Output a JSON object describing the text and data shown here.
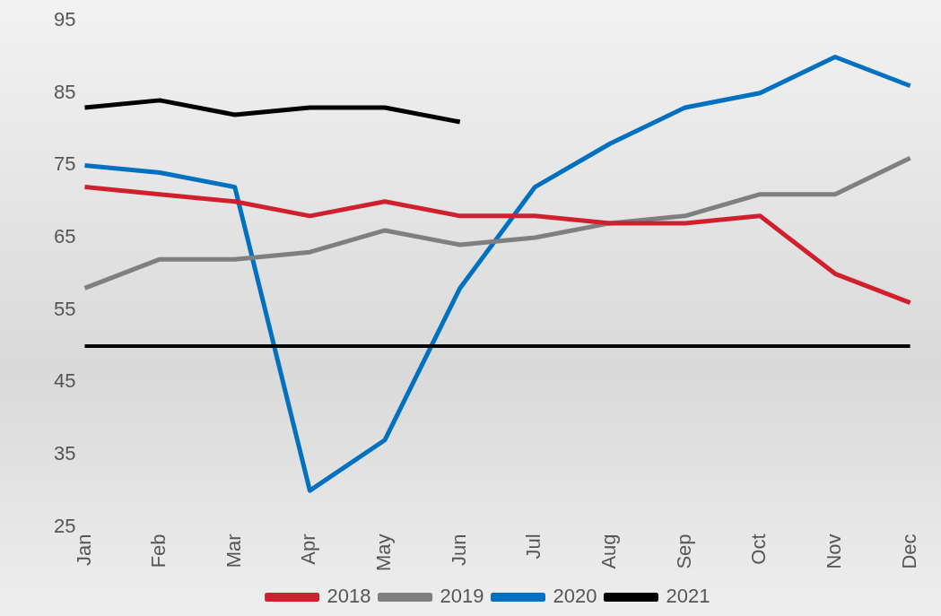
{
  "chart_data": {
    "type": "line",
    "categories": [
      "Jan",
      "Feb",
      "Mar",
      "Apr",
      "May",
      "Jun",
      "Jul",
      "Aug",
      "Sep",
      "Oct",
      "Nov",
      "Dec"
    ],
    "series": [
      {
        "name": "2018",
        "color": "#d0202e",
        "values": [
          72,
          71,
          70,
          68,
          70,
          68,
          68,
          67,
          67,
          68,
          60,
          56
        ]
      },
      {
        "name": "2019",
        "color": "#7f7f7f",
        "values": [
          58,
          62,
          62,
          63,
          66,
          64,
          65,
          67,
          68,
          71,
          71,
          76
        ]
      },
      {
        "name": "2020",
        "color": "#0070c0",
        "values": [
          75,
          74,
          72,
          30,
          37,
          58,
          72,
          78,
          83,
          85,
          90,
          86
        ]
      },
      {
        "name": "2021",
        "color": "#000000",
        "values": [
          83,
          84,
          82,
          83,
          83,
          81,
          null,
          null,
          null,
          null,
          null,
          null
        ]
      }
    ],
    "ref_lines": [
      {
        "axis": "y",
        "value": 50,
        "color": "#000000"
      }
    ],
    "ylim": [
      25,
      95
    ],
    "yticks": [
      25,
      35,
      45,
      55,
      65,
      75,
      85,
      95
    ],
    "grid": false,
    "legend": "bottom",
    "marker": "none",
    "line_style": "solid"
  }
}
